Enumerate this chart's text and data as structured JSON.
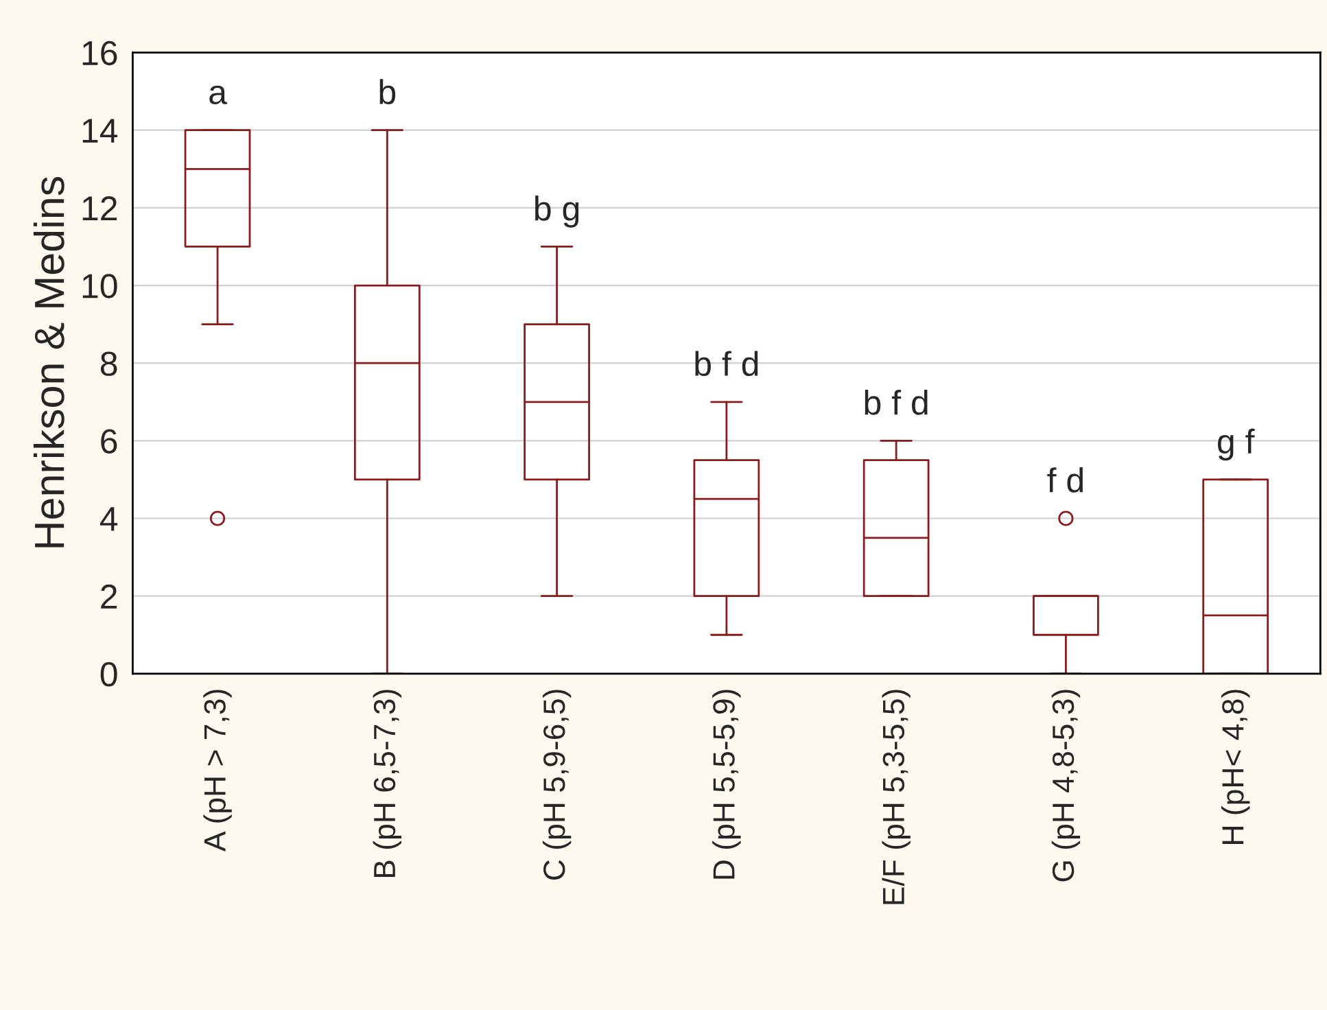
{
  "chart_data": {
    "type": "box",
    "ylabel": "Henrikson & Medins",
    "categories": [
      "A (pH > 7,3)",
      "B (pH 6,5-7,3)",
      "C (pH 5,9-6,5)",
      "D (pH 5,5-5,9)",
      "E/F (pH 5,3-5,5)",
      "G (pH 4,8-5,3)",
      "H (pH< 4,8)"
    ],
    "boxes": [
      {
        "low": 9,
        "q1": 11,
        "median": 13,
        "q3": 14,
        "high": 14,
        "outliers": [
          4
        ]
      },
      {
        "low": 0,
        "q1": 5,
        "median": 8,
        "q3": 10,
        "high": 14
      },
      {
        "low": 2,
        "q1": 5,
        "median": 7,
        "q3": 9,
        "high": 11
      },
      {
        "low": 1,
        "q1": 2,
        "median": 4.5,
        "q3": 5.5,
        "high": 7
      },
      {
        "low": 2,
        "q1": 2,
        "median": 3.5,
        "q3": 5.5,
        "high": 6
      },
      {
        "low": 0,
        "q1": 1,
        "median": 2,
        "q3": 2,
        "high": 2,
        "outliers": [
          4
        ]
      },
      {
        "low": 0,
        "q1": 0,
        "median": 1.5,
        "q3": 5,
        "high": 5
      }
    ],
    "color": "#8b1a1a",
    "ylim": [
      0,
      16
    ],
    "yticks": [
      0,
      2,
      4,
      6,
      8,
      10,
      12,
      14,
      16
    ],
    "grid": "y",
    "annotations": [
      "a",
      "b",
      "b g",
      "b f d",
      "b f d",
      "f d",
      "g f"
    ]
  }
}
